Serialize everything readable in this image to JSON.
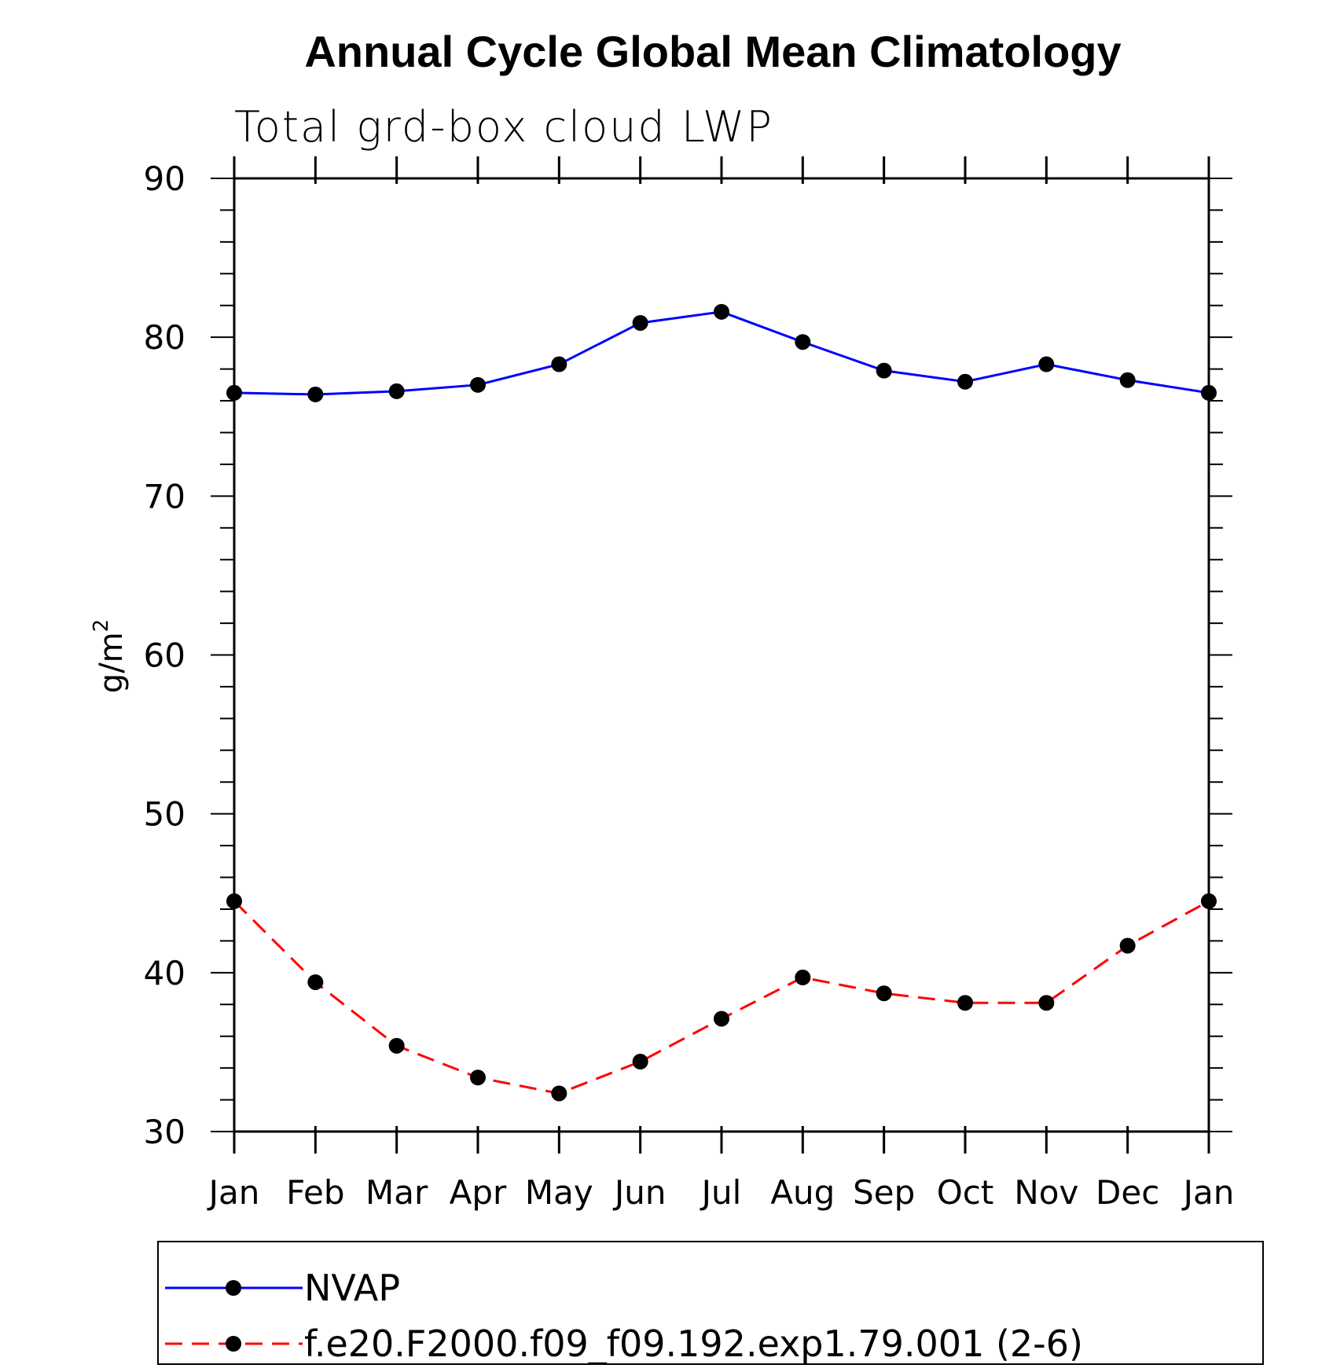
{
  "chart_data": {
    "type": "line",
    "title": "Annual Cycle Global Mean Climatology",
    "subtitle": "Total grd-box cloud LWP",
    "ylabel": "g/m",
    "ylabel_superscript": "2",
    "xlabel": "",
    "ylim": [
      30,
      90
    ],
    "yticks": [
      30,
      40,
      50,
      60,
      70,
      80,
      90
    ],
    "categories": [
      "Jan",
      "Feb",
      "Mar",
      "Apr",
      "May",
      "Jun",
      "Jul",
      "Aug",
      "Sep",
      "Oct",
      "Nov",
      "Dec",
      "Jan"
    ],
    "series": [
      {
        "name": "NVAP",
        "color": "#0000ff",
        "style": "solid",
        "values": [
          76.5,
          76.4,
          76.6,
          77.0,
          78.3,
          80.9,
          81.6,
          79.7,
          77.9,
          77.2,
          78.3,
          77.3,
          76.5
        ]
      },
      {
        "name": "f.e20.F2000.f09_f09.192.exp1.79.001 (2-6)",
        "color": "#ff0000",
        "style": "dashed",
        "values": [
          44.5,
          39.4,
          35.4,
          33.4,
          32.4,
          34.4,
          37.1,
          39.7,
          38.7,
          38.1,
          38.1,
          41.7,
          44.5
        ]
      }
    ],
    "legend_position": "bottom"
  }
}
